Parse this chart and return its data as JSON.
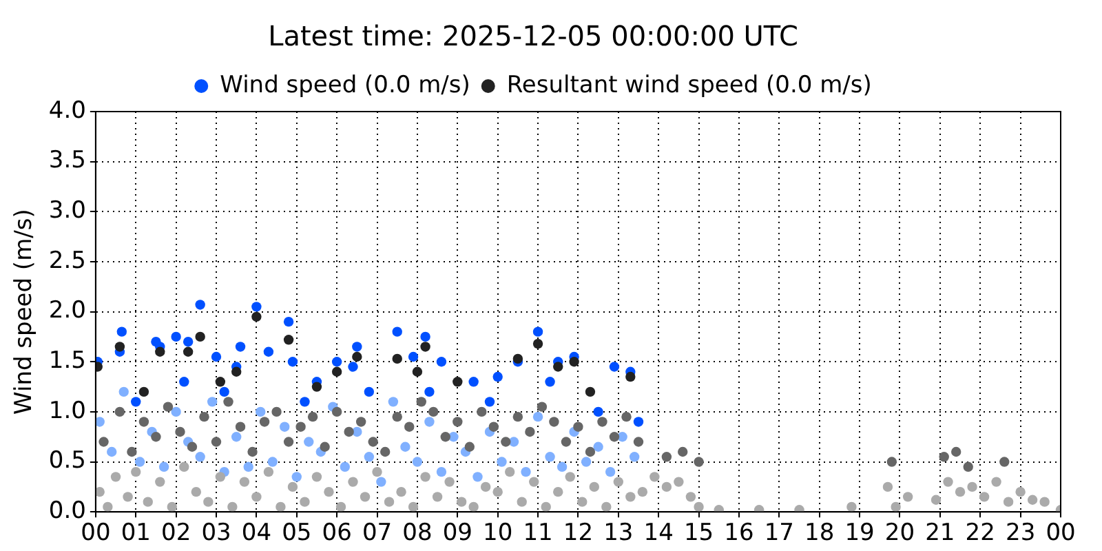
{
  "chart_data": {
    "type": "scatter",
    "title": "Latest time: 2025-12-05 00:00:00 UTC",
    "ylabel": "Wind speed (m/s)",
    "xlim": [
      0,
      24
    ],
    "xticks": [
      {
        "value": 0,
        "label": "00"
      },
      {
        "value": 1,
        "label": "01"
      },
      {
        "value": 2,
        "label": "02"
      },
      {
        "value": 3,
        "label": "03"
      },
      {
        "value": 4,
        "label": "04"
      },
      {
        "value": 5,
        "label": "05"
      },
      {
        "value": 6,
        "label": "06"
      },
      {
        "value": 7,
        "label": "07"
      },
      {
        "value": 8,
        "label": "08"
      },
      {
        "value": 9,
        "label": "09"
      },
      {
        "value": 10,
        "label": "10"
      },
      {
        "value": 11,
        "label": "11"
      },
      {
        "value": 12,
        "label": "12"
      },
      {
        "value": 13,
        "label": "13"
      },
      {
        "value": 14,
        "label": "14"
      },
      {
        "value": 15,
        "label": "15"
      },
      {
        "value": 16,
        "label": "16"
      },
      {
        "value": 17,
        "label": "17"
      },
      {
        "value": 18,
        "label": "18"
      },
      {
        "value": 19,
        "label": "19"
      },
      {
        "value": 20,
        "label": "20"
      },
      {
        "value": 21,
        "label": "21"
      },
      {
        "value": 22,
        "label": "22"
      },
      {
        "value": 23,
        "label": "23"
      },
      {
        "value": 24,
        "label": "00"
      }
    ],
    "ylim": [
      0,
      4
    ],
    "yticks": [
      {
        "value": 0,
        "label": "0.0"
      },
      {
        "value": 0.5,
        "label": "0.5"
      },
      {
        "value": 1,
        "label": "1.0"
      },
      {
        "value": 1.5,
        "label": "1.5"
      },
      {
        "value": 2,
        "label": "2.0"
      },
      {
        "value": 2.5,
        "label": "2.5"
      },
      {
        "value": 3,
        "label": "3.0"
      },
      {
        "value": 3.5,
        "label": "3.5"
      },
      {
        "value": 4,
        "label": "4.0"
      }
    ],
    "grid": true,
    "legend": "top",
    "marker": "circle",
    "series": [
      {
        "color": "#aaaaaa",
        "x": [
          0.1,
          0.3,
          0.5,
          0.8,
          1.0,
          1.3,
          1.6,
          1.9,
          2.2,
          2.5,
          2.8,
          3.1,
          3.4,
          3.7,
          4.0,
          4.3,
          4.6,
          4.9,
          5.2,
          5.5,
          5.8,
          6.1,
          6.4,
          6.7,
          7.0,
          7.3,
          7.6,
          7.9,
          8.2,
          8.5,
          8.8,
          9.1,
          9.4,
          9.7,
          10.0,
          10.3,
          10.6,
          10.9,
          11.2,
          11.5,
          11.8,
          12.1,
          12.4,
          12.7,
          13.0,
          13.3,
          13.6,
          13.9,
          14.2,
          14.5,
          14.8,
          15.0,
          15.5,
          16.5,
          17.5,
          18.8,
          19.7,
          19.9,
          20.2,
          20.9,
          21.2,
          21.5,
          21.8,
          22.1,
          22.4,
          22.7,
          23.0,
          23.3,
          23.6,
          24.0
        ],
        "values": [
          0.2,
          0.05,
          0.35,
          0.15,
          0.4,
          0.1,
          0.3,
          0.05,
          0.45,
          0.2,
          0.1,
          0.35,
          0.05,
          0.3,
          0.15,
          0.4,
          0.05,
          0.25,
          0.1,
          0.35,
          0.2,
          0.05,
          0.3,
          0.15,
          0.4,
          0.1,
          0.2,
          0.05,
          0.35,
          0.15,
          0.3,
          0.1,
          0.05,
          0.25,
          0.2,
          0.4,
          0.1,
          0.3,
          0.05,
          0.2,
          0.35,
          0.1,
          0.25,
          0.05,
          0.3,
          0.15,
          0.2,
          0.35,
          0.25,
          0.3,
          0.15,
          0.05,
          0.02,
          0.02,
          0.02,
          0.05,
          0.25,
          0.05,
          0.15,
          0.12,
          0.3,
          0.2,
          0.25,
          0.15,
          0.3,
          0.1,
          0.2,
          0.12,
          0.1,
          0.02
        ]
      },
      {
        "color": "#666666",
        "x": [
          0.2,
          0.6,
          0.9,
          1.2,
          1.5,
          1.8,
          2.1,
          2.4,
          2.7,
          3.0,
          3.3,
          3.6,
          3.9,
          4.2,
          4.5,
          4.8,
          5.1,
          5.4,
          5.7,
          6.0,
          6.3,
          6.6,
          6.9,
          7.2,
          7.5,
          7.8,
          8.1,
          8.4,
          8.7,
          9.0,
          9.3,
          9.6,
          9.9,
          10.2,
          10.5,
          10.8,
          11.1,
          11.4,
          11.7,
          12.0,
          12.3,
          12.6,
          12.9,
          13.2,
          13.5,
          14.2,
          14.6,
          15.0,
          19.8,
          21.1,
          21.4,
          21.7,
          22.6
        ],
        "values": [
          0.7,
          1.0,
          0.6,
          0.9,
          0.75,
          1.05,
          0.8,
          0.65,
          0.95,
          0.7,
          1.1,
          0.85,
          0.6,
          0.9,
          1.0,
          0.7,
          0.85,
          0.95,
          0.65,
          1.0,
          0.8,
          0.9,
          0.7,
          0.6,
          0.95,
          0.85,
          1.1,
          1.0,
          0.75,
          0.9,
          0.65,
          1.0,
          0.85,
          0.7,
          0.95,
          0.8,
          1.05,
          0.9,
          0.7,
          0.85,
          0.6,
          0.9,
          0.75,
          0.95,
          0.7,
          0.55,
          0.6,
          0.5,
          0.5,
          0.55,
          0.6,
          0.45,
          0.5
        ]
      },
      {
        "color": "#80b0ff",
        "x": [
          0.1,
          0.4,
          0.7,
          1.1,
          1.4,
          1.7,
          2.0,
          2.3,
          2.6,
          2.9,
          3.2,
          3.5,
          3.8,
          4.1,
          4.4,
          4.7,
          5.0,
          5.3,
          5.6,
          5.9,
          6.2,
          6.5,
          6.8,
          7.1,
          7.4,
          7.7,
          8.0,
          8.3,
          8.6,
          8.9,
          9.2,
          9.5,
          9.8,
          10.1,
          10.4,
          10.7,
          11.0,
          11.3,
          11.6,
          11.9,
          12.2,
          12.5,
          12.8,
          13.1,
          13.4
        ],
        "values": [
          0.9,
          0.6,
          1.2,
          0.5,
          0.8,
          0.45,
          1.0,
          0.7,
          0.55,
          1.1,
          0.4,
          0.75,
          0.45,
          1.0,
          0.5,
          0.85,
          0.35,
          0.7,
          0.6,
          1.05,
          0.45,
          0.8,
          0.55,
          0.3,
          1.1,
          0.65,
          0.5,
          0.9,
          0.4,
          0.75,
          0.6,
          0.35,
          0.8,
          0.5,
          0.7,
          0.4,
          0.95,
          0.55,
          0.45,
          0.8,
          0.5,
          0.65,
          0.4,
          0.75,
          0.55
        ]
      },
      {
        "name": "Resultant wind speed (0.0 m/s)",
        "color": "#222222",
        "x": [
          0.05,
          0.6,
          1.2,
          1.6,
          2.3,
          2.6,
          3.1,
          3.5,
          4.0,
          4.8,
          5.5,
          6.0,
          6.5,
          7.5,
          8.0,
          8.2,
          9.0,
          10.5,
          11.0,
          11.5,
          11.9,
          12.3,
          13.3
        ],
        "values": [
          1.45,
          1.65,
          1.2,
          1.6,
          1.6,
          1.75,
          1.3,
          1.4,
          1.95,
          1.72,
          1.25,
          1.4,
          1.55,
          1.53,
          1.4,
          1.65,
          1.3,
          1.53,
          1.68,
          1.45,
          1.5,
          1.2,
          1.35
        ]
      },
      {
        "name": "Wind speed (0.0 m/s)",
        "color": "#0050ff",
        "x": [
          0.05,
          0.6,
          0.65,
          1.0,
          1.5,
          1.6,
          2.0,
          2.2,
          2.3,
          2.6,
          3.0,
          3.2,
          3.5,
          3.6,
          4.0,
          4.3,
          4.8,
          4.9,
          5.2,
          5.5,
          6.0,
          6.4,
          6.5,
          6.8,
          7.5,
          7.9,
          8.2,
          8.3,
          8.6,
          9.4,
          9.8,
          10.0,
          10.5,
          11.0,
          11.3,
          11.5,
          11.9,
          12.5,
          12.9,
          13.3,
          13.5
        ],
        "values": [
          1.5,
          1.6,
          1.8,
          1.1,
          1.7,
          1.65,
          1.75,
          1.3,
          1.7,
          2.07,
          1.55,
          1.2,
          1.45,
          1.65,
          2.05,
          1.6,
          1.9,
          1.5,
          1.1,
          1.3,
          1.5,
          1.45,
          1.65,
          1.2,
          1.8,
          1.55,
          1.75,
          1.2,
          1.5,
          1.3,
          1.1,
          1.35,
          1.5,
          1.8,
          1.3,
          1.5,
          1.55,
          1.0,
          1.45,
          1.4,
          0.9
        ]
      }
    ]
  }
}
